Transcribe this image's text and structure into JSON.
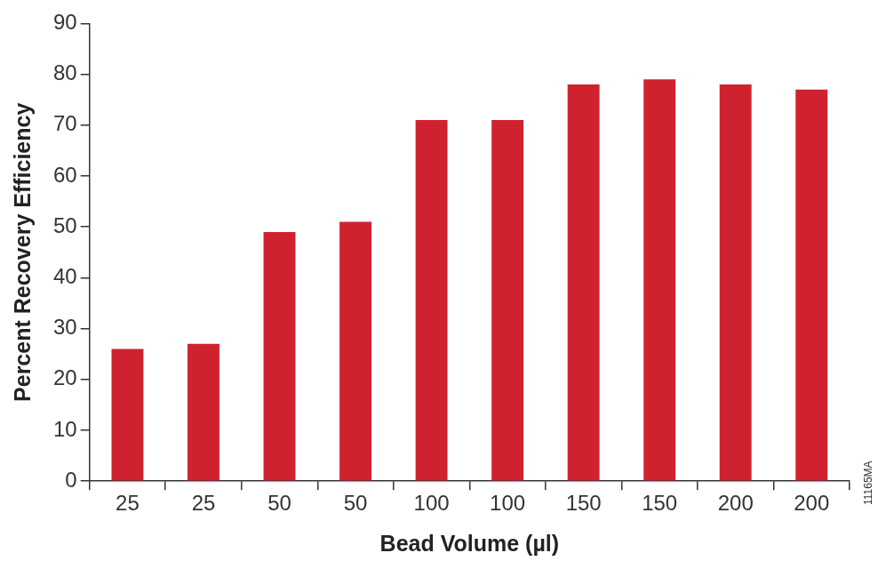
{
  "chart_data": {
    "type": "bar",
    "xlabel": "Bead Volume (µl)",
    "ylabel": "Percent Recovery Efficiency",
    "categories": [
      "25",
      "25",
      "50",
      "50",
      "100",
      "100",
      "150",
      "150",
      "200",
      "200"
    ],
    "values": [
      26,
      27,
      49,
      51,
      71,
      71,
      78,
      79,
      78,
      77
    ],
    "color": "#d0222e",
    "ylim": [
      0,
      90
    ],
    "yticks": [
      0,
      10,
      20,
      30,
      40,
      50,
      60,
      70,
      80,
      90
    ],
    "grid": false,
    "legend": false,
    "annotations": [
      "11165MA"
    ]
  }
}
